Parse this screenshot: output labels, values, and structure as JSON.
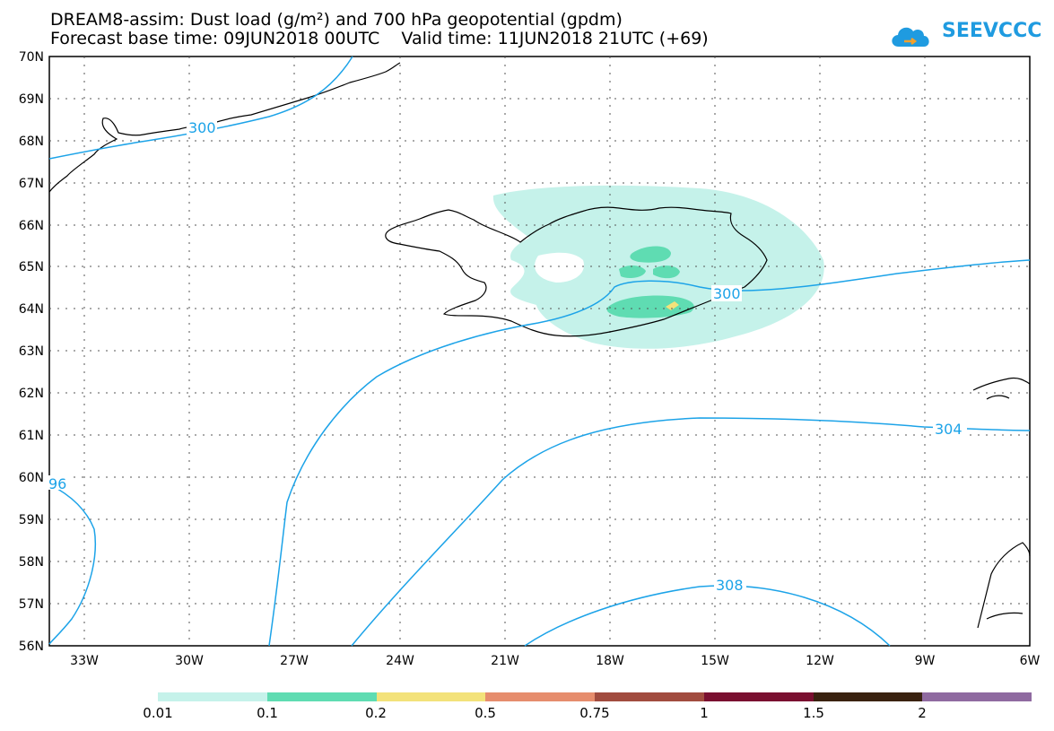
{
  "title": {
    "line1": "DREAM8-assim: Dust load (g/m²) and 700 hPa geopotential (gpdm)",
    "line2": "Forecast base time: 09JUN2018 00UTC    Valid time: 11JUN2018 21UTC (+69)"
  },
  "logo": {
    "text": "SEEVCCC",
    "icon": "cloud-icon",
    "color": "#1f9be0"
  },
  "map": {
    "lat_labels": [
      "70N",
      "69N",
      "68N",
      "67N",
      "66N",
      "65N",
      "64N",
      "63N",
      "62N",
      "61N",
      "60N",
      "59N",
      "58N",
      "57N",
      "56N"
    ],
    "lon_labels": [
      "33W",
      "30W",
      "27W",
      "24W",
      "21W",
      "18W",
      "15W",
      "12W",
      "9W",
      "6W"
    ],
    "contour_labels": [
      "300",
      "300",
      "304",
      "96",
      "308"
    ],
    "contour_color": "#1ca3e8"
  },
  "legend": {
    "labels": [
      "0.01",
      "0.1",
      "0.2",
      "0.5",
      "0.75",
      "1",
      "1.5",
      "2"
    ],
    "colors": [
      "#c5f2ea",
      "#5fdcb2",
      "#f3e27a",
      "#e68d6d",
      "#a14c3f",
      "#7a1030",
      "#3a2210",
      "#8f6aa0"
    ]
  }
}
